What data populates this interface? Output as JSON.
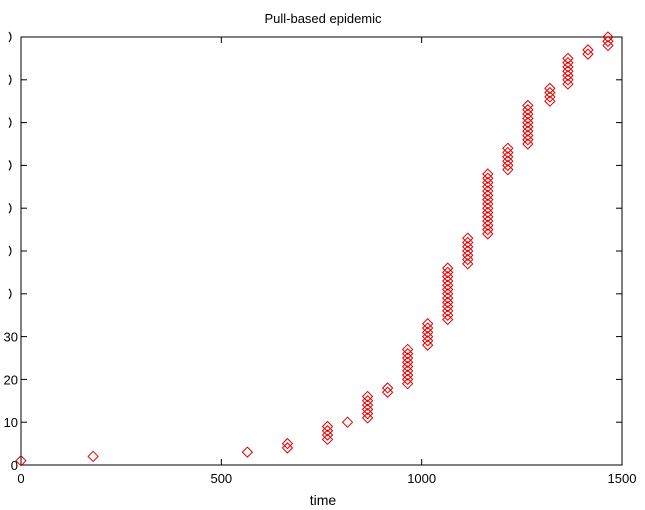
{
  "chart_data": {
    "type": "scatter",
    "title": "Pull-based epidemic",
    "xlabel": "time",
    "ylabel": "",
    "xlim": [
      0,
      1500
    ],
    "ylim": [
      0,
      100
    ],
    "x_ticks": [
      0,
      500,
      1000,
      1500
    ],
    "x_tick_labels": [
      "0",
      "500",
      "1000",
      "1500"
    ],
    "y_ticks": [
      0,
      10,
      20,
      30,
      40,
      50,
      60,
      70,
      80,
      90,
      100
    ],
    "y_tick_labels": [
      "0",
      "10",
      "20",
      "30",
      "",
      "",
      "",
      "",
      "",
      "",
      ""
    ],
    "grid": false,
    "marker": "diamond",
    "marker_color": "#e00000",
    "series": [
      {
        "points": [
          [
            0,
            1
          ],
          [
            180,
            2
          ],
          [
            565,
            3
          ],
          [
            665,
            4
          ],
          [
            665,
            5
          ],
          [
            765,
            6
          ],
          [
            765,
            7
          ],
          [
            765,
            8
          ],
          [
            765,
            9
          ],
          [
            815,
            10
          ],
          [
            865,
            11
          ],
          [
            865,
            12
          ],
          [
            865,
            13
          ],
          [
            865,
            14
          ],
          [
            865,
            15
          ],
          [
            865,
            16
          ],
          [
            915,
            17
          ],
          [
            915,
            18
          ],
          [
            965,
            19
          ],
          [
            965,
            20
          ],
          [
            965,
            21
          ],
          [
            965,
            22
          ],
          [
            965,
            23
          ],
          [
            965,
            24
          ],
          [
            965,
            25
          ],
          [
            965,
            26
          ],
          [
            965,
            27
          ],
          [
            1015,
            28
          ],
          [
            1015,
            29
          ],
          [
            1015,
            30
          ],
          [
            1015,
            31
          ],
          [
            1015,
            32
          ],
          [
            1015,
            33
          ],
          [
            1065,
            34
          ],
          [
            1065,
            35
          ],
          [
            1065,
            36
          ],
          [
            1065,
            37
          ],
          [
            1065,
            38
          ],
          [
            1065,
            39
          ],
          [
            1065,
            40
          ],
          [
            1065,
            41
          ],
          [
            1065,
            42
          ],
          [
            1065,
            43
          ],
          [
            1065,
            44
          ],
          [
            1065,
            45
          ],
          [
            1065,
            46
          ],
          [
            1115,
            47
          ],
          [
            1115,
            48
          ],
          [
            1115,
            49
          ],
          [
            1115,
            50
          ],
          [
            1115,
            51
          ],
          [
            1115,
            52
          ],
          [
            1115,
            53
          ],
          [
            1165,
            54
          ],
          [
            1165,
            55
          ],
          [
            1165,
            56
          ],
          [
            1165,
            57
          ],
          [
            1165,
            58
          ],
          [
            1165,
            59
          ],
          [
            1165,
            60
          ],
          [
            1165,
            61
          ],
          [
            1165,
            62
          ],
          [
            1165,
            63
          ],
          [
            1165,
            64
          ],
          [
            1165,
            65
          ],
          [
            1165,
            66
          ],
          [
            1165,
            67
          ],
          [
            1165,
            68
          ],
          [
            1215,
            69
          ],
          [
            1215,
            70
          ],
          [
            1215,
            71
          ],
          [
            1215,
            72
          ],
          [
            1215,
            73
          ],
          [
            1215,
            74
          ],
          [
            1265,
            75
          ],
          [
            1265,
            76
          ],
          [
            1265,
            77
          ],
          [
            1265,
            78
          ],
          [
            1265,
            79
          ],
          [
            1265,
            80
          ],
          [
            1265,
            81
          ],
          [
            1265,
            82
          ],
          [
            1265,
            83
          ],
          [
            1265,
            84
          ],
          [
            1320,
            85
          ],
          [
            1320,
            86
          ],
          [
            1320,
            87
          ],
          [
            1320,
            88
          ],
          [
            1365,
            89
          ],
          [
            1365,
            90
          ],
          [
            1365,
            91
          ],
          [
            1365,
            92
          ],
          [
            1365,
            93
          ],
          [
            1365,
            94
          ],
          [
            1365,
            95
          ],
          [
            1415,
            96
          ],
          [
            1415,
            97
          ],
          [
            1465,
            98
          ],
          [
            1465,
            99
          ],
          [
            1465,
            100
          ]
        ]
      }
    ]
  }
}
